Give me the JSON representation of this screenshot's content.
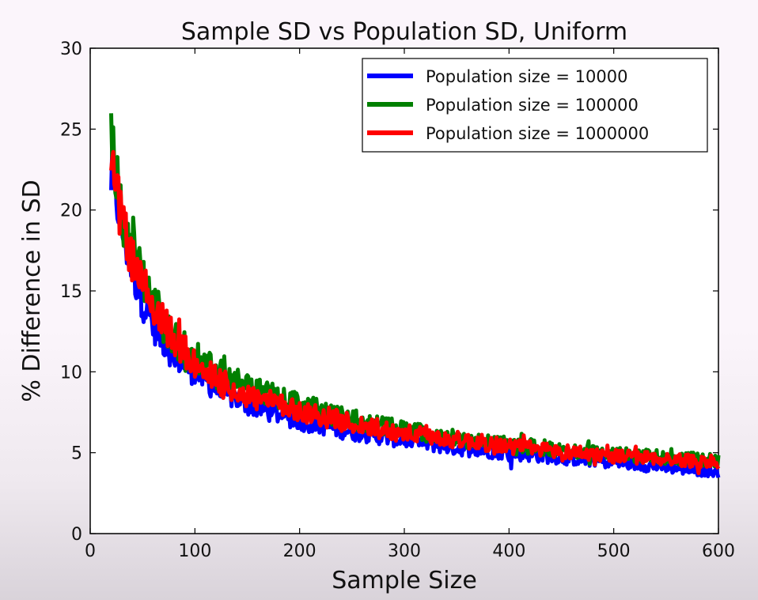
{
  "chart_data": {
    "type": "line",
    "title": "Sample SD vs Population SD, Uniform",
    "xlabel": "Sample Size",
    "ylabel": "% Difference in SD",
    "xlim": [
      0,
      600
    ],
    "ylim": [
      0,
      30
    ],
    "xticks": [
      0,
      100,
      200,
      300,
      400,
      500,
      600
    ],
    "yticks": [
      0,
      5,
      10,
      15,
      20,
      25,
      30
    ],
    "xtick_labels": [
      "0",
      "100",
      "200",
      "300",
      "400",
      "500",
      "600"
    ],
    "ytick_labels": [
      "0",
      "5",
      "10",
      "15",
      "20",
      "25",
      "30"
    ],
    "legend_position": "top-right",
    "series": [
      {
        "name": "Population size = 10000",
        "color": "#0000ff",
        "x": [
          20,
          25,
          30,
          40,
          50,
          60,
          70,
          80,
          100,
          120,
          150,
          200,
          250,
          300,
          350,
          400,
          450,
          500,
          550,
          600
        ],
        "values": [
          22.0,
          21.0,
          19.0,
          16.5,
          14.5,
          13.0,
          12.0,
          11.0,
          10.0,
          9.0,
          8.0,
          7.0,
          6.3,
          5.8,
          5.3,
          5.0,
          4.7,
          4.4,
          4.1,
          3.8
        ]
      },
      {
        "name": "Population size = 100000",
        "color": "#008000",
        "x": [
          20,
          25,
          30,
          40,
          50,
          60,
          70,
          80,
          100,
          120,
          150,
          200,
          250,
          300,
          350,
          400,
          450,
          500,
          550,
          600
        ],
        "values": [
          24.5,
          22.0,
          19.5,
          17.5,
          16.0,
          14.5,
          13.0,
          12.0,
          11.0,
          10.0,
          9.0,
          8.0,
          7.0,
          6.4,
          5.9,
          5.5,
          5.2,
          4.9,
          4.7,
          4.5
        ]
      },
      {
        "name": "Population size = 1000000",
        "color": "#ff0000",
        "x": [
          20,
          25,
          30,
          40,
          50,
          60,
          70,
          80,
          100,
          120,
          150,
          200,
          250,
          300,
          350,
          400,
          450,
          500,
          550,
          600
        ],
        "values": [
          23.0,
          21.0,
          19.0,
          17.0,
          15.5,
          14.0,
          13.0,
          12.0,
          10.5,
          9.5,
          8.5,
          7.6,
          6.8,
          6.2,
          5.8,
          5.4,
          5.1,
          4.8,
          4.6,
          4.4
        ]
      }
    ]
  }
}
